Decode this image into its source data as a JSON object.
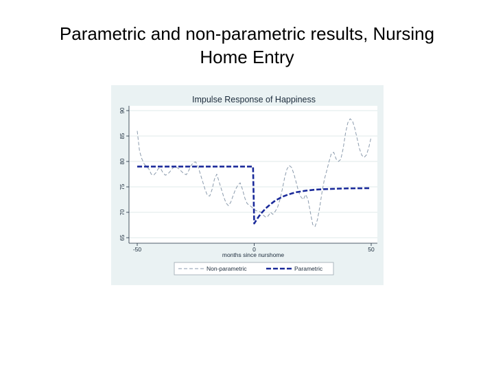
{
  "slide": {
    "title_line1": "Parametric and non-parametric results, Nursing",
    "title_line2": "Home Entry"
  },
  "chart_data": {
    "type": "line",
    "title": "Impulse Response of Happiness",
    "xlabel": "months since nurshome",
    "ylabel": "",
    "xlim": [
      -50,
      50
    ],
    "ylim": [
      65,
      90
    ],
    "xticks": [
      -50,
      0,
      50
    ],
    "yticks": [
      65,
      70,
      75,
      80,
      85,
      90
    ],
    "grid": "horizontal",
    "legend_position": "bottom",
    "colors": {
      "figure_bg": "#eaf2f3",
      "plot_bg": "#ffffff",
      "grid": "#dfe8ea",
      "axis_text": "#1a2a3a",
      "non_parametric": "#8a9aac",
      "parametric": "#1a2a9a"
    },
    "series": [
      {
        "name": "Non-parametric",
        "style": "dashed-thin",
        "x": [
          -50,
          -49,
          -48,
          -47,
          -46,
          -45,
          -44,
          -43,
          -42,
          -41,
          -40,
          -39,
          -38,
          -37,
          -36,
          -35,
          -34,
          -33,
          -32,
          -31,
          -30,
          -29,
          -28,
          -27,
          -26,
          -25,
          -24,
          -23,
          -22,
          -21,
          -20,
          -19,
          -18,
          -17,
          -16,
          -15,
          -14,
          -13,
          -12,
          -11,
          -10,
          -9,
          -8,
          -7,
          -6,
          -5,
          -4,
          -3,
          -2,
          -1,
          0,
          1,
          2,
          3,
          4,
          5,
          6,
          7,
          8,
          9,
          10,
          11,
          12,
          13,
          14,
          15,
          16,
          17,
          18,
          19,
          20,
          21,
          22,
          23,
          24,
          25,
          26,
          27,
          28,
          29,
          30,
          31,
          32,
          33,
          34,
          35,
          36,
          37,
          38,
          39,
          40,
          41,
          42,
          43,
          44,
          45,
          46,
          47,
          48,
          49,
          50
        ],
        "y": [
          86.0,
          82.0,
          80.5,
          79.5,
          79.0,
          78.5,
          77.5,
          77.3,
          77.8,
          78.6,
          78.6,
          77.8,
          77.3,
          77.5,
          78.0,
          78.6,
          79.0,
          78.8,
          78.5,
          78.0,
          77.6,
          77.4,
          78.2,
          79.2,
          79.8,
          79.9,
          79.0,
          77.5,
          76.0,
          74.5,
          73.3,
          73.2,
          74.5,
          76.5,
          77.5,
          76.0,
          74.5,
          73.0,
          71.8,
          71.3,
          72.0,
          73.3,
          74.5,
          75.3,
          75.8,
          74.5,
          72.8,
          71.7,
          71.4,
          71.0,
          70.5,
          70.3,
          70.2,
          70.0,
          69.4,
          69.0,
          69.3,
          70.0,
          69.6,
          70.2,
          71.0,
          72.5,
          74.5,
          76.8,
          78.5,
          79.2,
          78.8,
          77.5,
          75.8,
          74.0,
          73.0,
          72.5,
          73.5,
          72.5,
          70.0,
          67.6,
          67.2,
          68.5,
          71.0,
          74.0,
          76.5,
          78.2,
          80.0,
          81.6,
          81.8,
          80.5,
          80.0,
          80.4,
          82.5,
          85.5,
          87.6,
          88.4,
          88.0,
          86.5,
          84.5,
          82.5,
          81.2,
          80.8,
          81.3,
          82.8,
          84.8
        ]
      },
      {
        "name": "Parametric",
        "style": "dashed-thick",
        "x": [
          -50,
          -45,
          -40,
          -35,
          -30,
          -25,
          -20,
          -15,
          -10,
          -5,
          -0.5,
          0,
          1,
          2,
          3,
          4,
          5,
          6,
          7,
          8,
          9,
          10,
          12,
          14,
          16,
          18,
          20,
          22,
          24,
          26,
          28,
          30,
          33,
          36,
          40,
          45,
          50
        ],
        "y": [
          79.0,
          79.0,
          79.0,
          79.0,
          79.0,
          79.0,
          79.0,
          79.0,
          79.0,
          79.0,
          79.0,
          67.8,
          68.5,
          69.2,
          69.8,
          70.3,
          70.8,
          71.2,
          71.6,
          71.95,
          72.3,
          72.55,
          73.05,
          73.4,
          73.7,
          73.95,
          74.1,
          74.25,
          74.35,
          74.45,
          74.5,
          74.55,
          74.6,
          74.65,
          74.7,
          74.72,
          74.75
        ]
      }
    ]
  }
}
